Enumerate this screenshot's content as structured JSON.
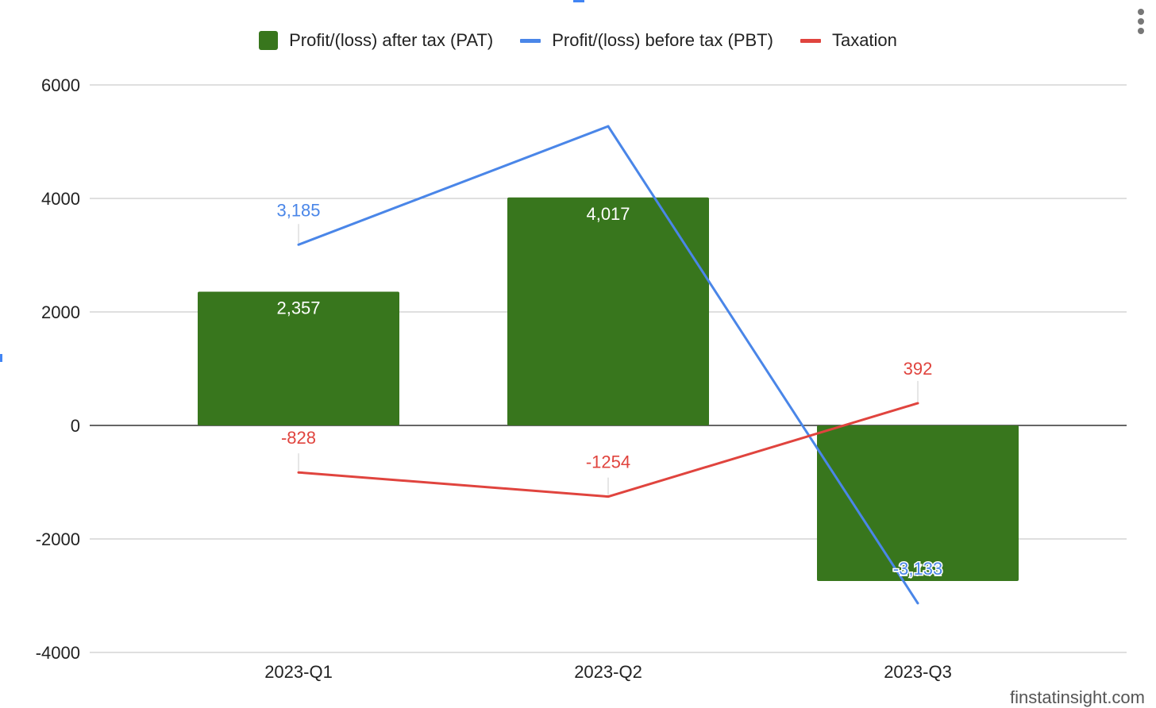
{
  "chart_data": {
    "type": "bar",
    "categories": [
      "2023-Q1",
      "2023-Q2",
      "2023-Q3"
    ],
    "series": [
      {
        "name": "Profit/(loss) after tax (PAT)",
        "kind": "bar",
        "color": "#38761d",
        "values": [
          2357,
          4017,
          -2741
        ],
        "labels": [
          "2,357",
          "4,017",
          "-2,741"
        ]
      },
      {
        "name": "Profit/(loss) before tax (PBT)",
        "kind": "line",
        "color": "#4a86e8",
        "values": [
          3185,
          5271,
          -3133
        ],
        "labels": [
          "3,185",
          "",
          "-3,133"
        ]
      },
      {
        "name": "Taxation",
        "kind": "line",
        "color": "#e0443e",
        "values": [
          -828,
          -1254,
          392
        ],
        "labels": [
          "-828",
          "-1254",
          "392"
        ]
      }
    ],
    "yticks": [
      "6000",
      "4000",
      "2000",
      "0",
      "-2000",
      "-4000"
    ],
    "ylim": [
      -4000,
      6000
    ],
    "grid": true,
    "legend_position": "top"
  },
  "watermark": "finstatinsight.com",
  "menu_icon": "more-vert-icon"
}
